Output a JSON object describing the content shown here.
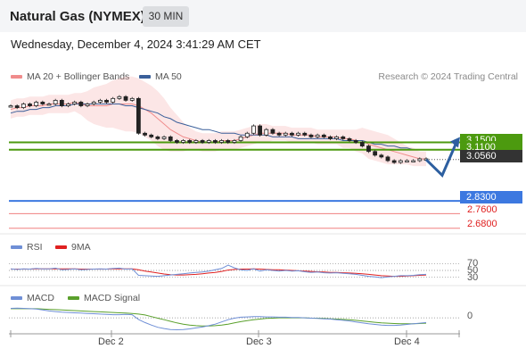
{
  "header": {
    "instrument": "Natural Gas (NYMEX)",
    "interval": "30 MIN",
    "datetime": "Wednesday, December 4, 2024 3:41:29 AM CET"
  },
  "legend": {
    "bollinger": "MA 20 + Bollinger Bands",
    "ma50": "MA 50",
    "rsi": "RSI",
    "rsi_ma": "9MA",
    "macd": "MACD",
    "macd_signal": "MACD Signal"
  },
  "copyright": "Research © 2024 Trading Central",
  "colors": {
    "bollinger": "#f08c8c",
    "ma50": "#3a5f9a",
    "green_level": "#4c9a0f",
    "blue_level": "#3c78e0",
    "red_level": "#f08080",
    "price_tag": "#333333",
    "rsi": "#6f8fd6",
    "rsi_ma": "#e02020",
    "macd": "#6f8fd6",
    "macd_signal": "#5aa02c"
  },
  "levels": {
    "resistance_1": "3.1500",
    "resistance_2": "3.1100",
    "last_price": "3.0560",
    "pivot": "2.8300",
    "support_1": "2.7600",
    "support_2": "2.6800"
  },
  "rsi_ticks": [
    "70",
    "50",
    "30"
  ],
  "macd_ticks": [
    "0"
  ],
  "x_ticks": [
    "Dec 2",
    "Dec 3",
    "Dec 4"
  ],
  "chart_data": {
    "type": "candlestick",
    "ylim": [
      2.64,
      3.46
    ],
    "price": [
      3.35,
      3.34,
      3.36,
      3.35,
      3.37,
      3.36,
      3.36,
      3.38,
      3.35,
      3.36,
      3.37,
      3.35,
      3.36,
      3.37,
      3.38,
      3.37,
      3.39,
      3.4,
      3.38,
      3.39,
      3.2,
      3.19,
      3.18,
      3.17,
      3.18,
      3.16,
      3.15,
      3.16,
      3.15,
      3.16,
      3.15,
      3.16,
      3.15,
      3.16,
      3.15,
      3.16,
      3.18,
      3.2,
      3.24,
      3.19,
      3.22,
      3.2,
      3.19,
      3.2,
      3.19,
      3.2,
      3.19,
      3.18,
      3.19,
      3.18,
      3.17,
      3.18,
      3.17,
      3.16,
      3.15,
      3.13,
      3.1,
      3.08,
      3.07,
      3.05,
      3.04,
      3.05,
      3.05,
      3.05,
      3.06,
      3.06
    ],
    "bollinger_mid": [
      3.33,
      3.34,
      3.34,
      3.35,
      3.35,
      3.35,
      3.36,
      3.36,
      3.36,
      3.36,
      3.37,
      3.36,
      3.35,
      3.35,
      3.35,
      3.35,
      3.36,
      3.36,
      3.36,
      3.36,
      3.35,
      3.33,
      3.31,
      3.28,
      3.25,
      3.22,
      3.2,
      3.18,
      3.17,
      3.16,
      3.15,
      3.15,
      3.15,
      3.16,
      3.16,
      3.16,
      3.17,
      3.18,
      3.19,
      3.2,
      3.2,
      3.2,
      3.2,
      3.2,
      3.19,
      3.19,
      3.19,
      3.19,
      3.18,
      3.18,
      3.18,
      3.18,
      3.17,
      3.17,
      3.16,
      3.16,
      3.14,
      3.13,
      3.12,
      3.11,
      3.1,
      3.09,
      3.08,
      3.07,
      3.06,
      3.06
    ],
    "bollinger_width": [
      0.05,
      0.05,
      0.05,
      0.05,
      0.05,
      0.05,
      0.05,
      0.05,
      0.05,
      0.05,
      0.05,
      0.06,
      0.08,
      0.1,
      0.11,
      0.12,
      0.13,
      0.14,
      0.15,
      0.15,
      0.15,
      0.15,
      0.15,
      0.15,
      0.14,
      0.12,
      0.1,
      0.08,
      0.06,
      0.05,
      0.05,
      0.05,
      0.05,
      0.05,
      0.05,
      0.05,
      0.05,
      0.05,
      0.05,
      0.05,
      0.05,
      0.04,
      0.04,
      0.04,
      0.04,
      0.04,
      0.04,
      0.04,
      0.04,
      0.04,
      0.04,
      0.04,
      0.05,
      0.05,
      0.06,
      0.07,
      0.08,
      0.08,
      0.08,
      0.08,
      0.07,
      0.06,
      0.05,
      0.05,
      0.04,
      0.04
    ],
    "ma50": [
      3.31,
      3.32,
      3.32,
      3.33,
      3.33,
      3.34,
      3.34,
      3.35,
      3.35,
      3.35,
      3.36,
      3.36,
      3.36,
      3.36,
      3.36,
      3.36,
      3.36,
      3.36,
      3.35,
      3.35,
      3.34,
      3.33,
      3.32,
      3.31,
      3.29,
      3.28,
      3.26,
      3.25,
      3.24,
      3.23,
      3.22,
      3.22,
      3.21,
      3.2,
      3.2,
      3.2,
      3.19,
      3.19,
      3.19,
      3.19,
      3.19,
      3.18,
      3.18,
      3.18,
      3.18,
      3.17,
      3.17,
      3.17,
      3.17,
      3.17,
      3.17,
      3.17,
      3.16,
      3.16,
      3.16,
      3.16,
      3.15,
      3.14,
      3.14,
      3.13,
      3.13,
      3.12,
      3.12,
      3.11,
      3.11,
      3.11
    ],
    "rsi": [
      55,
      53,
      55,
      54,
      56,
      55,
      55,
      57,
      52,
      53,
      55,
      52,
      53,
      54,
      55,
      54,
      56,
      57,
      54,
      55,
      35,
      34,
      33,
      32,
      34,
      36,
      38,
      40,
      42,
      44,
      45,
      48,
      52,
      56,
      66,
      58,
      52,
      50,
      55,
      48,
      52,
      50,
      48,
      50,
      48,
      49,
      46,
      44,
      45,
      43,
      42,
      43,
      41,
      40,
      38,
      35,
      32,
      30,
      28,
      30,
      32,
      34,
      34,
      35,
      37,
      38
    ],
    "rsi_ma": [
      54,
      54,
      54,
      54,
      55,
      55,
      55,
      55,
      55,
      55,
      55,
      54,
      54,
      54,
      54,
      54,
      55,
      55,
      55,
      55,
      52,
      48,
      45,
      42,
      39,
      37,
      36,
      36,
      37,
      38,
      40,
      42,
      44,
      47,
      51,
      53,
      54,
      54,
      55,
      54,
      53,
      52,
      52,
      51,
      50,
      49,
      48,
      47,
      46,
      45,
      44,
      44,
      43,
      42,
      41,
      40,
      38,
      36,
      34,
      33,
      32,
      32,
      33,
      34,
      35,
      36
    ],
    "macd": [
      0.03,
      0.031,
      0.03,
      0.029,
      0.028,
      0.025,
      0.022,
      0.02,
      0.018,
      0.017,
      0.016,
      0.015,
      0.014,
      0.013,
      0.012,
      0.011,
      0.01,
      0.01,
      0.011,
      0.01,
      -0.005,
      -0.015,
      -0.023,
      -0.03,
      -0.034,
      -0.037,
      -0.038,
      -0.037,
      -0.035,
      -0.032,
      -0.029,
      -0.025,
      -0.02,
      -0.013,
      -0.006,
      -0.001,
      0.002,
      0.003,
      0.004,
      0.004,
      0.003,
      0.003,
      0.002,
      0.002,
      0.001,
      0.001,
      0.0,
      -0.001,
      -0.002,
      -0.003,
      -0.004,
      -0.006,
      -0.008,
      -0.01,
      -0.013,
      -0.016,
      -0.019,
      -0.021,
      -0.023,
      -0.024,
      -0.024,
      -0.023,
      -0.021,
      -0.019,
      -0.017,
      -0.015
    ],
    "macd_signal": [
      0.029,
      0.029,
      0.029,
      0.029,
      0.029,
      0.028,
      0.027,
      0.026,
      0.025,
      0.024,
      0.023,
      0.022,
      0.021,
      0.02,
      0.019,
      0.018,
      0.017,
      0.016,
      0.015,
      0.014,
      0.012,
      0.009,
      0.004,
      -0.001,
      -0.006,
      -0.011,
      -0.016,
      -0.02,
      -0.023,
      -0.025,
      -0.026,
      -0.026,
      -0.025,
      -0.023,
      -0.02,
      -0.016,
      -0.012,
      -0.009,
      -0.006,
      -0.004,
      -0.002,
      -0.001,
      0.0,
      0.0,
      0.0,
      0.0,
      0.0,
      -0.001,
      -0.001,
      -0.002,
      -0.003,
      -0.004,
      -0.005,
      -0.006,
      -0.008,
      -0.01,
      -0.012,
      -0.014,
      -0.016,
      -0.017,
      -0.018,
      -0.019,
      -0.019,
      -0.019,
      -0.018,
      -0.017
    ],
    "forecast": [
      3.056,
      2.97,
      3.15
    ]
  }
}
